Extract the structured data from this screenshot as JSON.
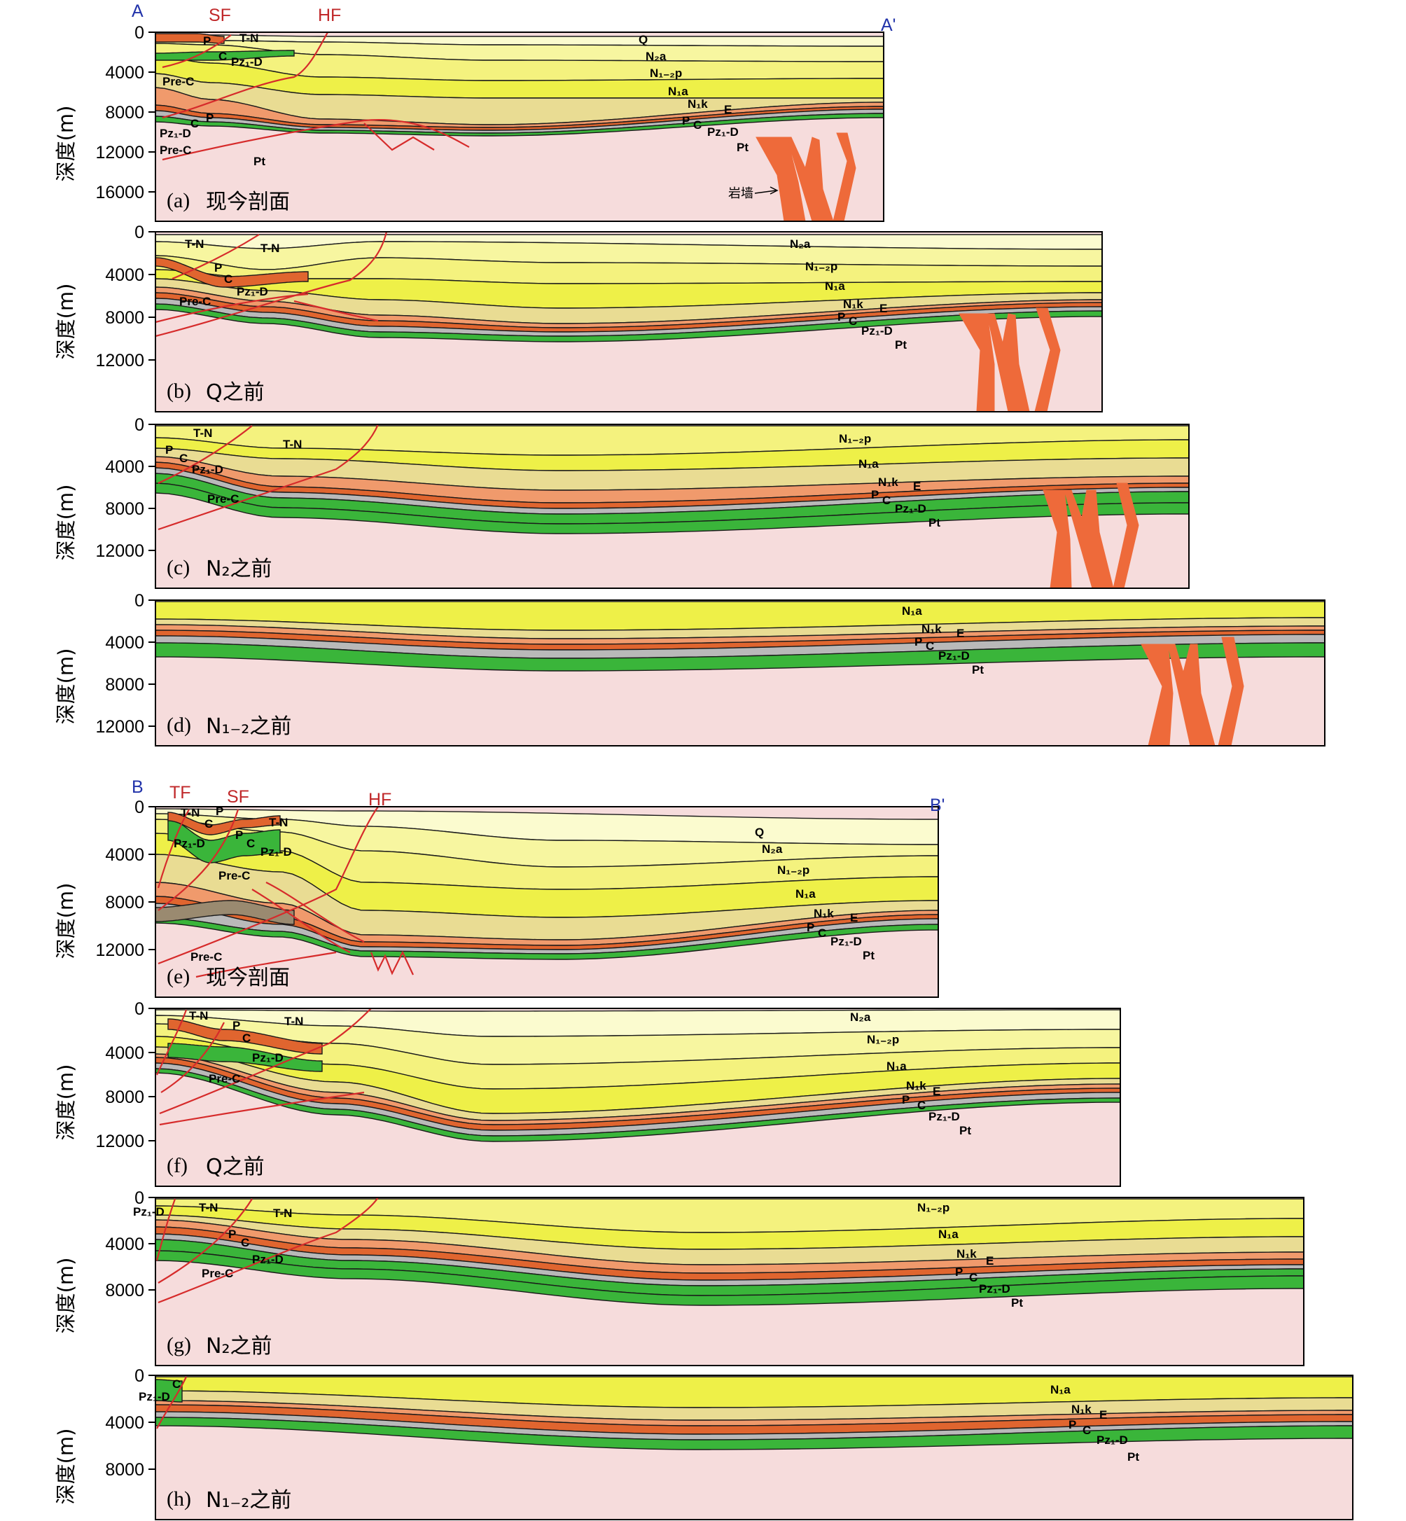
{
  "colors": {
    "basement": "#f6dcdc",
    "q_layer": "#fbfbcf",
    "n2a_layer": "#f7f6a0",
    "n12p_layer": "#f4f27e",
    "n1a_layer": "#eef048",
    "n1k_layer": "#e9dc93",
    "e_layer": "#f09a6c",
    "permian": "#e0652f",
    "carbon": "#b9b9b9",
    "devonian": "#3ab53a",
    "fault": "#d62b2b",
    "dike": "#ee6a3a",
    "endpoint_label": "#2233aa"
  },
  "y_axis_label": "深度(m)",
  "panels": [
    {
      "id": "a",
      "caption_letter": "(a)",
      "caption_text": "现今剖面",
      "ticks": [
        "0",
        "4000",
        "8000",
        "12000",
        "16000"
      ],
      "fault_labels": [
        "SF",
        "HF"
      ],
      "endpoints": [
        "A",
        "A'"
      ],
      "dike_label": "岩墙"
    },
    {
      "id": "b",
      "caption_letter": "(b)",
      "caption_text": "Q之前",
      "ticks": [
        "0",
        "4000",
        "8000",
        "12000"
      ]
    },
    {
      "id": "c",
      "caption_letter": "(c)",
      "caption_text": "N₂之前",
      "ticks": [
        "0",
        "4000",
        "8000",
        "12000"
      ]
    },
    {
      "id": "d",
      "caption_letter": "(d)",
      "caption_text": "N₁₋₂之前",
      "ticks": [
        "0",
        "4000",
        "8000",
        "12000"
      ]
    },
    {
      "id": "e",
      "caption_letter": "(e)",
      "caption_text": "现今剖面",
      "ticks": [
        "0",
        "4000",
        "8000",
        "12000"
      ],
      "fault_labels": [
        "TF",
        "SF",
        "HF"
      ],
      "endpoints": [
        "B",
        "B'"
      ]
    },
    {
      "id": "f",
      "caption_letter": "(f)",
      "caption_text": "Q之前",
      "ticks": [
        "0",
        "4000",
        "8000",
        "12000"
      ]
    },
    {
      "id": "g",
      "caption_letter": "(g)",
      "caption_text": "N₂之前",
      "ticks": [
        "0",
        "4000",
        "8000"
      ]
    },
    {
      "id": "h",
      "caption_letter": "(h)",
      "caption_text": "N₁₋₂之前",
      "ticks": [
        "0",
        "4000",
        "8000"
      ]
    }
  ],
  "strata_labels": {
    "Q": "Q",
    "N2a": "N₂a",
    "N12p": "N₁₋₂p",
    "N1a": "N₁a",
    "N1k": "N₁k",
    "E": "E",
    "P": "P",
    "C": "C",
    "PzD": "Pz₁-D",
    "Pt": "Pt",
    "TN": "T-N",
    "PreC": "Pre-C"
  }
}
